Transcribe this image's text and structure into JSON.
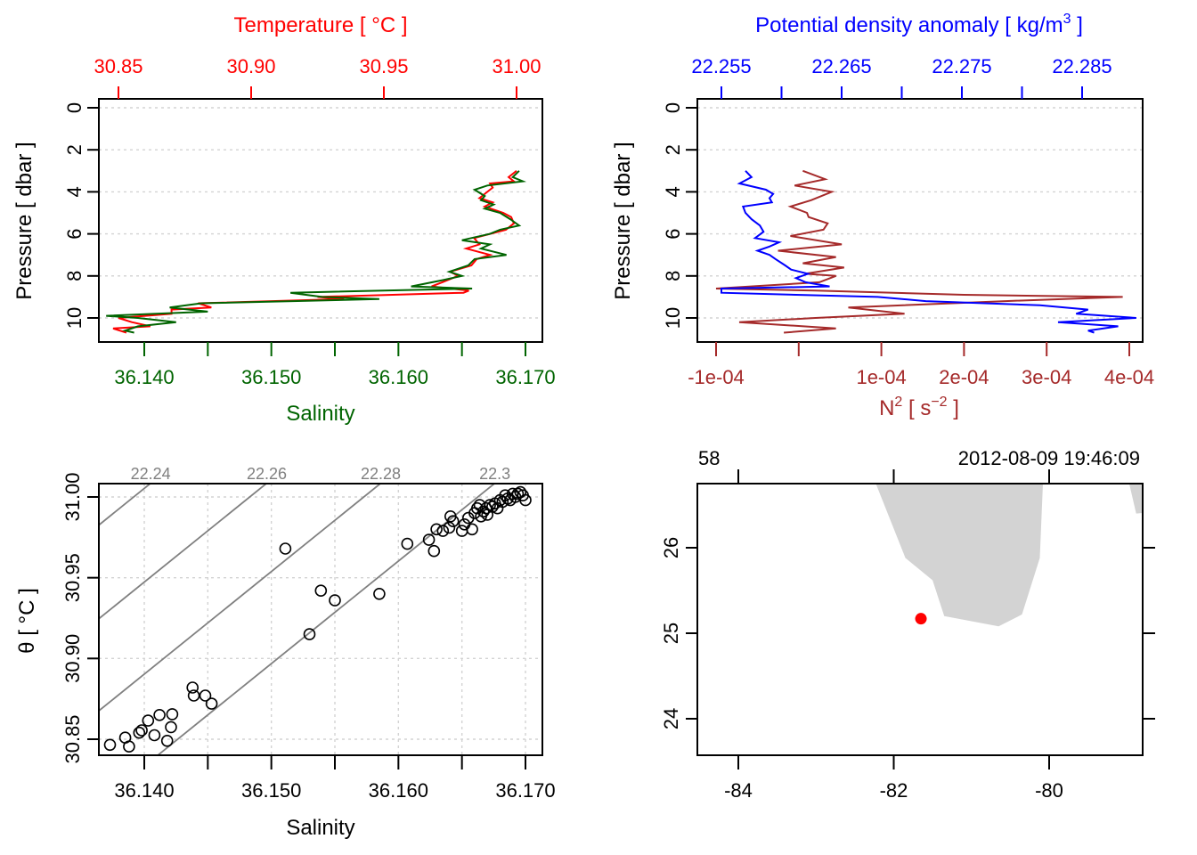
{
  "figure": {
    "colors": {
      "temperature": "#ff0000",
      "salinity": "#006400",
      "density": "#0000ff",
      "n2": "#a52a2a",
      "isopycnal": "#808080",
      "land": "#d3d3d3",
      "station": "#ff0000",
      "axis": "#000000"
    }
  },
  "chart_data": [
    {
      "id": "profile-temperature-salinity",
      "type": "line",
      "title": "",
      "ylabel": "Pressure [ dbar ]",
      "ylim": [
        0,
        10.8
      ],
      "y_reversed": true,
      "y_ticks": [
        "0",
        "2",
        "4",
        "6",
        "8",
        "10"
      ],
      "grid": "horizontal dotted",
      "top_axis": {
        "label": "Temperature [ °C ]",
        "ticks": [
          "30.85",
          "30.90",
          "30.95",
          "31.00"
        ],
        "range": [
          30.8435,
          31.0035
        ]
      },
      "bottom_axis": {
        "label": "Salinity",
        "ticks": [
          "36.140",
          "36.150",
          "36.160",
          "36.170"
        ],
        "minor_ticks": [
          36.145,
          36.155,
          36.165
        ],
        "range": [
          36.1357,
          36.1716
        ]
      },
      "series": [
        {
          "name": "Temperature",
          "axis": "top",
          "pressure": [
            3.0,
            3.3,
            3.5,
            3.6,
            3.8,
            4.0,
            4.3,
            4.5,
            4.7,
            5.0,
            5.2,
            5.5,
            5.8,
            6.0,
            6.2,
            6.5,
            6.7,
            7.0,
            7.2,
            7.5,
            7.8,
            8.0,
            8.3,
            8.5,
            8.7,
            8.8,
            9.0,
            9.1,
            9.3,
            9.5,
            9.6,
            9.8,
            10.0,
            10.2,
            10.4,
            10.5,
            10.7
          ],
          "values": [
            31.0,
            30.997,
            30.999,
            30.99,
            30.991,
            30.989,
            30.986,
            30.991,
            30.988,
            30.995,
            30.998,
            30.999,
            30.996,
            30.99,
            30.984,
            30.986,
            30.981,
            30.99,
            30.985,
            30.983,
            30.975,
            30.978,
            30.972,
            30.968,
            30.982,
            30.98,
            30.925,
            30.935,
            30.88,
            30.885,
            30.87,
            30.87,
            30.85,
            30.855,
            30.862,
            30.848,
            30.853
          ]
        },
        {
          "name": "Salinity",
          "axis": "bottom",
          "pressure": [
            3.0,
            3.3,
            3.5,
            3.7,
            3.9,
            4.2,
            4.4,
            4.6,
            4.8,
            5.0,
            5.3,
            5.6,
            5.8,
            6.0,
            6.3,
            6.5,
            6.7,
            7.0,
            7.2,
            7.5,
            7.8,
            8.0,
            8.2,
            8.5,
            8.6,
            8.8,
            9.0,
            9.1,
            9.3,
            9.5,
            9.7,
            9.9,
            10.0,
            10.2,
            10.4,
            10.6,
            10.7
          ],
          "values": [
            36.1695,
            36.169,
            36.1698,
            36.167,
            36.166,
            36.1668,
            36.1665,
            36.1675,
            36.1668,
            36.168,
            36.1688,
            36.1695,
            36.168,
            36.1672,
            36.165,
            36.1672,
            36.1665,
            36.1685,
            36.166,
            36.1655,
            36.164,
            36.165,
            36.1635,
            36.161,
            36.1658,
            36.1515,
            36.154,
            36.1585,
            36.1445,
            36.142,
            36.145,
            36.137,
            36.1395,
            36.1425,
            36.1395,
            36.1385,
            36.1392
          ]
        }
      ]
    },
    {
      "id": "profile-density-n2",
      "type": "line",
      "title": "",
      "ylabel": "Pressure [ dbar ]",
      "ylim": [
        0,
        10.8
      ],
      "y_reversed": true,
      "y_ticks": [
        "0",
        "2",
        "4",
        "6",
        "8",
        "10"
      ],
      "grid": "horizontal dotted",
      "top_axis": {
        "label": "Potential density anomaly [ kg/m³ ]",
        "label_main": "Potential density anomaly [ kg/m",
        "label_sup": "3",
        "label_end": " ]",
        "ticks": [
          "22.255",
          "22.265",
          "22.275",
          "22.285"
        ],
        "minor_ticks": [
          22.26,
          22.27,
          22.28
        ],
        "range": [
          22.2535,
          22.2905
        ]
      },
      "bottom_axis": {
        "label": "N² [ s⁻² ]",
        "label_main": "N",
        "label_sup": "2",
        "label_mid": " [ s",
        "label_sup2": "−2",
        "label_end": " ]",
        "ticks": [
          "-1e-04",
          "1e-04",
          "2e-04",
          "3e-04",
          "4e-04"
        ],
        "minor_ticks": [
          0
        ],
        "range": [
          -0.000123,
          0.000413
        ]
      },
      "series": [
        {
          "name": "Potential density anomaly",
          "axis": "top",
          "pressure": [
            3.0,
            3.3,
            3.6,
            3.9,
            4.1,
            4.3,
            4.5,
            4.7,
            5.0,
            5.3,
            5.6,
            5.9,
            6.2,
            6.4,
            6.6,
            6.8,
            7.0,
            7.2,
            7.5,
            7.7,
            7.9,
            8.1,
            8.3,
            8.5,
            8.6,
            8.8,
            9.0,
            9.2,
            9.4,
            9.6,
            9.8,
            10.0,
            10.2,
            10.4,
            10.6,
            10.7
          ],
          "values": [
            22.257,
            22.2575,
            22.2565,
            22.2587,
            22.2593,
            22.259,
            22.2592,
            22.2568,
            22.257,
            22.2575,
            22.2582,
            22.2585,
            22.2578,
            22.2598,
            22.259,
            22.258,
            22.259,
            22.2595,
            22.2603,
            22.2608,
            22.2622,
            22.2612,
            22.262,
            22.264,
            22.255,
            22.255,
            22.268,
            22.272,
            22.2815,
            22.2855,
            22.2845,
            22.2895,
            22.283,
            22.288,
            22.2855,
            22.286
          ]
        },
        {
          "name": "N2",
          "axis": "bottom",
          "pressure": [
            3.0,
            3.4,
            3.7,
            4.0,
            4.4,
            4.7,
            5.0,
            5.2,
            5.5,
            5.8,
            6.1,
            6.5,
            6.8,
            7.1,
            7.4,
            7.6,
            7.9,
            8.0,
            8.3,
            8.6,
            8.7,
            8.9,
            9.0,
            9.2,
            9.5,
            9.8,
            10.0,
            10.2,
            10.5,
            10.7
          ],
          "values": [
            5e-06,
            3.2e-05,
            -5e-06,
            4e-05,
            1.5e-05,
            -1e-05,
            1e-05,
            1.2e-05,
            3.5e-05,
            3e-05,
            -1e-05,
            5.2e-05,
            -2.5e-05,
            4.5e-05,
            5e-06,
            5.5e-05,
            8e-06,
            4.5e-05,
            2.5e-05,
            -0.0001,
            2e-05,
            0.0002,
            0.000392,
            0.00025,
            6e-05,
            0.000128,
            2e-05,
            -7.2e-05,
            4.5e-05,
            -1.8e-05
          ]
        }
      ]
    },
    {
      "id": "ts-diagram",
      "type": "scatter",
      "title": "",
      "xlabel": "Salinity",
      "ylabel": "θ [ °C ]",
      "xlim": [
        36.1357,
        36.1716
      ],
      "ylim": [
        30.8395,
        31.0085
      ],
      "x_ticks": [
        "36.140",
        "36.150",
        "36.160",
        "36.170"
      ],
      "x_minor_ticks": [
        36.145,
        36.155,
        36.165
      ],
      "y_ticks": [
        "30.85",
        "30.90",
        "30.95",
        "31.00"
      ],
      "grid": "dashed both",
      "isopycnals": [
        {
          "label": "22.24",
          "s0": 36.1357,
          "t0": 30.978,
          "slope": 6.35
        },
        {
          "label": "22.26",
          "s0": 36.1357,
          "t0": 30.92,
          "slope": 6.35
        },
        {
          "label": "22.28",
          "s0": 36.1357,
          "t0": 30.863,
          "slope": 6.35
        },
        {
          "label": "22.3",
          "s0": 36.1357,
          "t0": 30.806,
          "slope": 6.35
        }
      ],
      "points": [
        [
          36.1373,
          30.8465
        ],
        [
          36.1385,
          30.851
        ],
        [
          36.1388,
          30.8455
        ],
        [
          36.1396,
          30.854
        ],
        [
          36.1398,
          30.8555
        ],
        [
          36.1403,
          30.8615
        ],
        [
          36.1408,
          30.8525
        ],
        [
          36.1412,
          30.865
        ],
        [
          36.1418,
          30.849
        ],
        [
          36.1421,
          30.8575
        ],
        [
          36.1422,
          30.8655
        ],
        [
          36.1438,
          30.882
        ],
        [
          36.1439,
          30.877
        ],
        [
          36.1448,
          30.877
        ],
        [
          36.1453,
          30.872
        ],
        [
          36.1511,
          30.968
        ],
        [
          36.153,
          30.915
        ],
        [
          36.1539,
          30.942
        ],
        [
          36.155,
          30.936
        ],
        [
          36.1585,
          30.94
        ],
        [
          36.1607,
          30.971
        ],
        [
          36.1624,
          30.9735
        ],
        [
          36.1628,
          30.9665
        ],
        [
          36.163,
          30.98
        ],
        [
          36.1635,
          30.979
        ],
        [
          36.164,
          30.981
        ],
        [
          36.1641,
          30.988
        ],
        [
          36.1643,
          30.985
        ],
        [
          36.165,
          30.979
        ],
        [
          36.1652,
          30.983
        ],
        [
          36.1655,
          30.987
        ],
        [
          36.1658,
          30.98
        ],
        [
          36.166,
          30.99
        ],
        [
          36.1662,
          30.993
        ],
        [
          36.1664,
          30.995
        ],
        [
          36.1665,
          30.988
        ],
        [
          36.1667,
          30.991
        ],
        [
          36.1669,
          30.993
        ],
        [
          36.167,
          30.989
        ],
        [
          36.1672,
          30.995
        ],
        [
          36.1674,
          30.994
        ],
        [
          36.1676,
          30.996
        ],
        [
          36.1678,
          30.993
        ],
        [
          36.168,
          30.998
        ],
        [
          36.1682,
          30.997
        ],
        [
          36.1684,
          31.001
        ],
        [
          36.1686,
          30.999
        ],
        [
          36.1688,
          30.998
        ],
        [
          36.169,
          31.002
        ],
        [
          36.1692,
          31.0
        ],
        [
          36.1694,
          31.002
        ],
        [
          36.1696,
          31.003
        ],
        [
          36.1698,
          31.001
        ],
        [
          36.17,
          30.998
        ]
      ]
    },
    {
      "id": "station-map",
      "type": "scatter",
      "title": "",
      "top_left_label": "58",
      "top_right_label": "2012-08-09 19:46:09",
      "xlim": [
        -84.5,
        -78.6
      ],
      "ylim": [
        23.55,
        26.75
      ],
      "x_ticks": [
        "-84",
        "-82",
        "-80"
      ],
      "y_ticks": [
        "24",
        "25",
        "26"
      ],
      "station": {
        "lon": -81.65,
        "lat": 25.17
      },
      "land_polygons": [
        [
          [
            -82.23,
            26.75
          ],
          [
            -81.85,
            25.88
          ],
          [
            -81.5,
            25.62
          ],
          [
            -81.35,
            25.2
          ],
          [
            -80.65,
            25.08
          ],
          [
            -80.35,
            25.22
          ],
          [
            -80.12,
            25.88
          ],
          [
            -80.08,
            26.75
          ]
        ],
        [
          [
            -78.97,
            26.75
          ],
          [
            -78.6,
            26.75
          ],
          [
            -78.6,
            26.42
          ],
          [
            -78.88,
            26.4
          ]
        ]
      ]
    }
  ]
}
